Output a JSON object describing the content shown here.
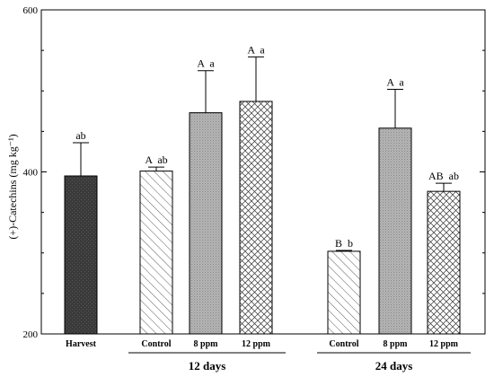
{
  "chart_data": {
    "type": "bar",
    "title": "",
    "xlabel": "",
    "ylabel": "(+)-Catechins (mg kg⁻¹)",
    "ylim": [
      200,
      600
    ],
    "yticks": [
      200,
      400,
      600
    ],
    "grid": false,
    "legend": "none",
    "groups": [
      {
        "label": "",
        "bars": [
          {
            "category": "Harvest",
            "value": 395,
            "error": 41,
            "letters": "ab",
            "fill": "solid-dark"
          }
        ]
      },
      {
        "label": "12 days",
        "bars": [
          {
            "category": "Control",
            "value": 401,
            "error": 5,
            "letters": "A  ab",
            "fill": "diagonal"
          },
          {
            "category": "8 ppm",
            "value": 473,
            "error": 52,
            "letters": "A  a",
            "fill": "dotted-gray"
          },
          {
            "category": "12 ppm",
            "value": 487,
            "error": 55,
            "letters": "A  a",
            "fill": "crosshatch"
          }
        ]
      },
      {
        "label": "24 days",
        "bars": [
          {
            "category": "Control",
            "value": 302,
            "error": 1,
            "letters": "B  b",
            "fill": "diagonal"
          },
          {
            "category": "8 ppm",
            "value": 454,
            "error": 48,
            "letters": "A  a",
            "fill": "dotted-gray"
          },
          {
            "category": "12 ppm",
            "value": 376,
            "error": 10,
            "letters": "AB  ab",
            "fill": "crosshatch"
          }
        ]
      }
    ],
    "colors": {
      "dark": "#3a3a3a",
      "gray": "#a9a9a9",
      "stroke": "#000000"
    }
  }
}
